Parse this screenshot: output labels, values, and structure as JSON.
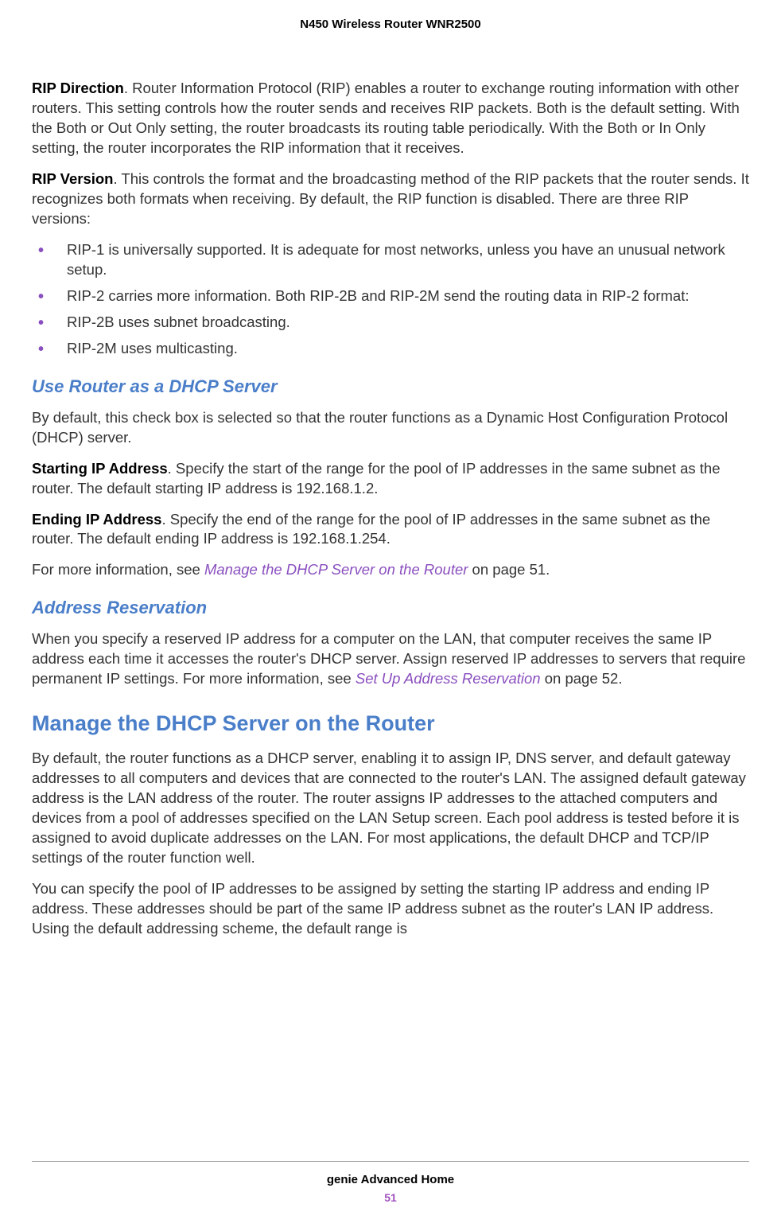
{
  "header": {
    "title": "N450 Wireless Router WNR2500"
  },
  "sections": {
    "rip_direction": {
      "lead": "RIP Direction",
      "text": ". Router Information Protocol (RIP) enables a router to exchange routing information with other routers. This setting controls how the router sends and receives RIP packets. Both is the default setting. With the Both or Out Only setting, the router broadcasts its routing table periodically. With the Both or In Only setting, the router incorporates the RIP information that it receives."
    },
    "rip_version": {
      "lead": "RIP Version",
      "text": ". This controls the format and the broadcasting method of the RIP packets that the router sends. It recognizes both formats when receiving. By default, the RIP function is disabled. There are three RIP versions:"
    },
    "rip_bullets": {
      "b1": "RIP-1 is universally supported. It is adequate for most networks, unless you have an unusual network setup.",
      "b2": "RIP-2 carries more information. Both RIP-2B and RIP-2M send the routing data in RIP-2 format:",
      "b3": "RIP-2B uses subnet broadcasting.",
      "b4": "RIP-2M uses multicasting."
    },
    "dhcp_server": {
      "heading": "Use Router as a DHCP Server",
      "intro": "By default, this check box is selected so that the router functions as a Dynamic Host Configuration Protocol (DHCP) server.",
      "start_lead": "Starting IP Address",
      "start_text": ". Specify the start of the range for the pool of IP addresses in the same subnet as the router. The default starting IP address is 192.168.1.2.",
      "end_lead": "Ending IP Address",
      "end_text": ". Specify the end of the range for the pool of IP addresses in the same subnet as the router. The default ending IP address is 192.168.1.254.",
      "more_pre": "For more information, see ",
      "more_link": "Manage the DHCP Server on the Router",
      "more_post": " on page 51."
    },
    "addr_res": {
      "heading": "Address Reservation",
      "text_pre": "When you specify a reserved IP address for a computer on the LAN, that computer receives the same IP address each time it accesses the router's DHCP server. Assign reserved IP addresses to servers that require permanent IP settings. For more information, see ",
      "link": "Set Up Address Reservation",
      "text_post": " on page 52."
    },
    "manage_dhcp": {
      "heading": "Manage the DHCP Server on the Router",
      "p1": "By default, the router functions as a DHCP server, enabling it to assign IP, DNS server, and default gateway addresses to all computers and devices that are connected to the router's LAN. The assigned default gateway address is the LAN address of the router. The router assigns IP addresses to the attached computers and devices from a pool of addresses specified on the LAN Setup screen. Each pool address is tested before it is assigned to avoid duplicate addresses on the LAN. For most applications, the default DHCP and TCP/IP settings of the router function well.",
      "p2": "You can specify the pool of IP addresses to be assigned by setting the starting IP address and ending IP address. These addresses should be part of the same IP address subnet as the router's LAN IP address. Using the default addressing scheme, the default range is"
    }
  },
  "footer": {
    "text": "genie Advanced Home",
    "page": "51"
  },
  "styling": {
    "body_font_size": 18.5,
    "h2_font_size": 27,
    "h3_font_size": 22,
    "heading_color": "#4a7ec9",
    "link_color": "#8a4fbf",
    "bullet_color": "#8a4fbf",
    "text_color": "#333333",
    "footer_page_color": "#a050c0",
    "background_color": "#ffffff"
  }
}
